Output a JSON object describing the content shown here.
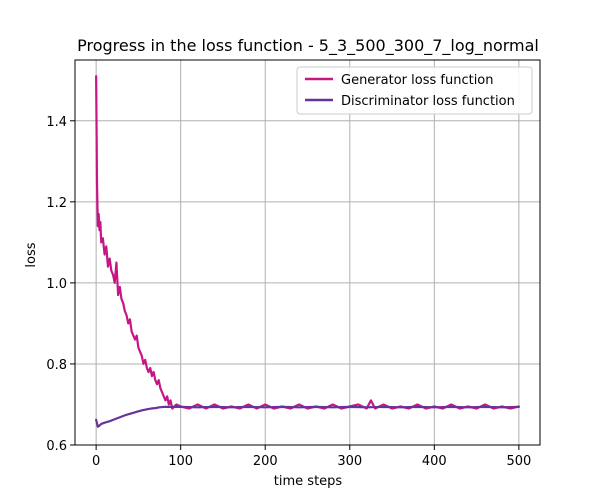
{
  "chart_data": {
    "type": "line",
    "title": "Progress in the loss function - 5_3_500_300_7_log_normal",
    "xlabel": "time steps",
    "ylabel": "loss",
    "xlim": [
      -25,
      525
    ],
    "ylim": [
      0.6,
      1.55
    ],
    "xticks": [
      0,
      100,
      200,
      300,
      400,
      500
    ],
    "yticks": [
      0.6,
      0.8,
      1.0,
      1.2,
      1.4
    ],
    "ytick_labels": [
      "0.6",
      "0.8",
      "1.0",
      "1.2",
      "1.4"
    ],
    "grid": true,
    "legend_position": "top-right",
    "series": [
      {
        "name": "Generator loss function",
        "color": "#c71585",
        "x": [
          0,
          1,
          2,
          3,
          4,
          5,
          6,
          8,
          10,
          12,
          14,
          16,
          18,
          20,
          22,
          24,
          26,
          28,
          30,
          32,
          34,
          36,
          38,
          40,
          42,
          44,
          46,
          48,
          50,
          52,
          54,
          56,
          58,
          60,
          62,
          64,
          66,
          68,
          70,
          72,
          74,
          76,
          78,
          80,
          82,
          84,
          86,
          88,
          90,
          95,
          100,
          110,
          120,
          130,
          140,
          150,
          160,
          170,
          180,
          190,
          200,
          210,
          220,
          230,
          240,
          250,
          260,
          270,
          280,
          290,
          300,
          310,
          320,
          325,
          330,
          340,
          350,
          360,
          370,
          380,
          390,
          400,
          410,
          420,
          430,
          440,
          450,
          460,
          470,
          480,
          490,
          500
        ],
        "values": [
          1.51,
          1.25,
          1.14,
          1.17,
          1.13,
          1.15,
          1.1,
          1.11,
          1.07,
          1.09,
          1.04,
          1.06,
          1.03,
          1.02,
          1.0,
          1.05,
          0.97,
          0.99,
          0.96,
          0.95,
          0.93,
          0.92,
          0.9,
          0.91,
          0.88,
          0.87,
          0.86,
          0.87,
          0.84,
          0.83,
          0.82,
          0.8,
          0.81,
          0.79,
          0.78,
          0.79,
          0.77,
          0.78,
          0.76,
          0.75,
          0.76,
          0.74,
          0.73,
          0.72,
          0.71,
          0.72,
          0.7,
          0.71,
          0.69,
          0.7,
          0.695,
          0.69,
          0.7,
          0.69,
          0.7,
          0.69,
          0.695,
          0.69,
          0.7,
          0.69,
          0.7,
          0.69,
          0.695,
          0.69,
          0.7,
          0.69,
          0.695,
          0.69,
          0.7,
          0.69,
          0.695,
          0.7,
          0.69,
          0.71,
          0.69,
          0.7,
          0.69,
          0.695,
          0.69,
          0.7,
          0.69,
          0.695,
          0.69,
          0.7,
          0.69,
          0.695,
          0.69,
          0.7,
          0.69,
          0.695,
          0.69,
          0.695
        ]
      },
      {
        "name": "Discriminator loss function",
        "color": "#663399",
        "x": [
          0,
          2,
          4,
          6,
          10,
          15,
          20,
          25,
          30,
          35,
          40,
          45,
          50,
          55,
          60,
          65,
          70,
          75,
          80,
          85,
          90,
          100,
          120,
          140,
          160,
          180,
          200,
          220,
          240,
          260,
          280,
          300,
          320,
          340,
          360,
          380,
          400,
          420,
          440,
          460,
          480,
          500
        ],
        "values": [
          0.662,
          0.645,
          0.648,
          0.652,
          0.655,
          0.658,
          0.662,
          0.666,
          0.67,
          0.674,
          0.677,
          0.68,
          0.683,
          0.686,
          0.688,
          0.69,
          0.691,
          0.693,
          0.694,
          0.694,
          0.694,
          0.694,
          0.693,
          0.694,
          0.693,
          0.694,
          0.693,
          0.694,
          0.693,
          0.694,
          0.693,
          0.694,
          0.693,
          0.694,
          0.693,
          0.694,
          0.693,
          0.694,
          0.693,
          0.694,
          0.693,
          0.694
        ]
      }
    ]
  }
}
